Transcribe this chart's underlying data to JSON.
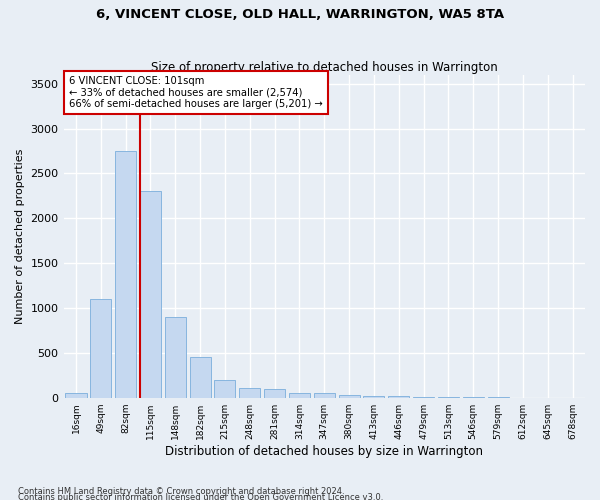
{
  "title": "6, VINCENT CLOSE, OLD HALL, WARRINGTON, WA5 8TA",
  "subtitle": "Size of property relative to detached houses in Warrington",
  "xlabel": "Distribution of detached houses by size in Warrington",
  "ylabel": "Number of detached properties",
  "bar_color": "#c5d8f0",
  "bar_edge_color": "#7aaedc",
  "background_color": "#e8eef5",
  "grid_color": "#ffffff",
  "categories": [
    "16sqm",
    "49sqm",
    "82sqm",
    "115sqm",
    "148sqm",
    "182sqm",
    "215sqm",
    "248sqm",
    "281sqm",
    "314sqm",
    "347sqm",
    "380sqm",
    "413sqm",
    "446sqm",
    "479sqm",
    "513sqm",
    "546sqm",
    "579sqm",
    "612sqm",
    "645sqm",
    "678sqm"
  ],
  "values": [
    50,
    1100,
    2750,
    2300,
    900,
    450,
    200,
    110,
    100,
    55,
    50,
    30,
    20,
    15,
    10,
    8,
    5,
    3,
    2,
    1,
    1
  ],
  "ylim": [
    0,
    3600
  ],
  "yticks": [
    0,
    500,
    1000,
    1500,
    2000,
    2500,
    3000,
    3500
  ],
  "vline_x": 2.57,
  "vline_color": "#cc0000",
  "annotation_title": "6 VINCENT CLOSE: 101sqm",
  "annotation_line1": "← 33% of detached houses are smaller (2,574)",
  "annotation_line2": "66% of semi-detached houses are larger (5,201) →",
  "annotation_box_color": "#ffffff",
  "annotation_box_edge": "#cc0000",
  "footnote1": "Contains HM Land Registry data © Crown copyright and database right 2024.",
  "footnote2": "Contains public sector information licensed under the Open Government Licence v3.0."
}
